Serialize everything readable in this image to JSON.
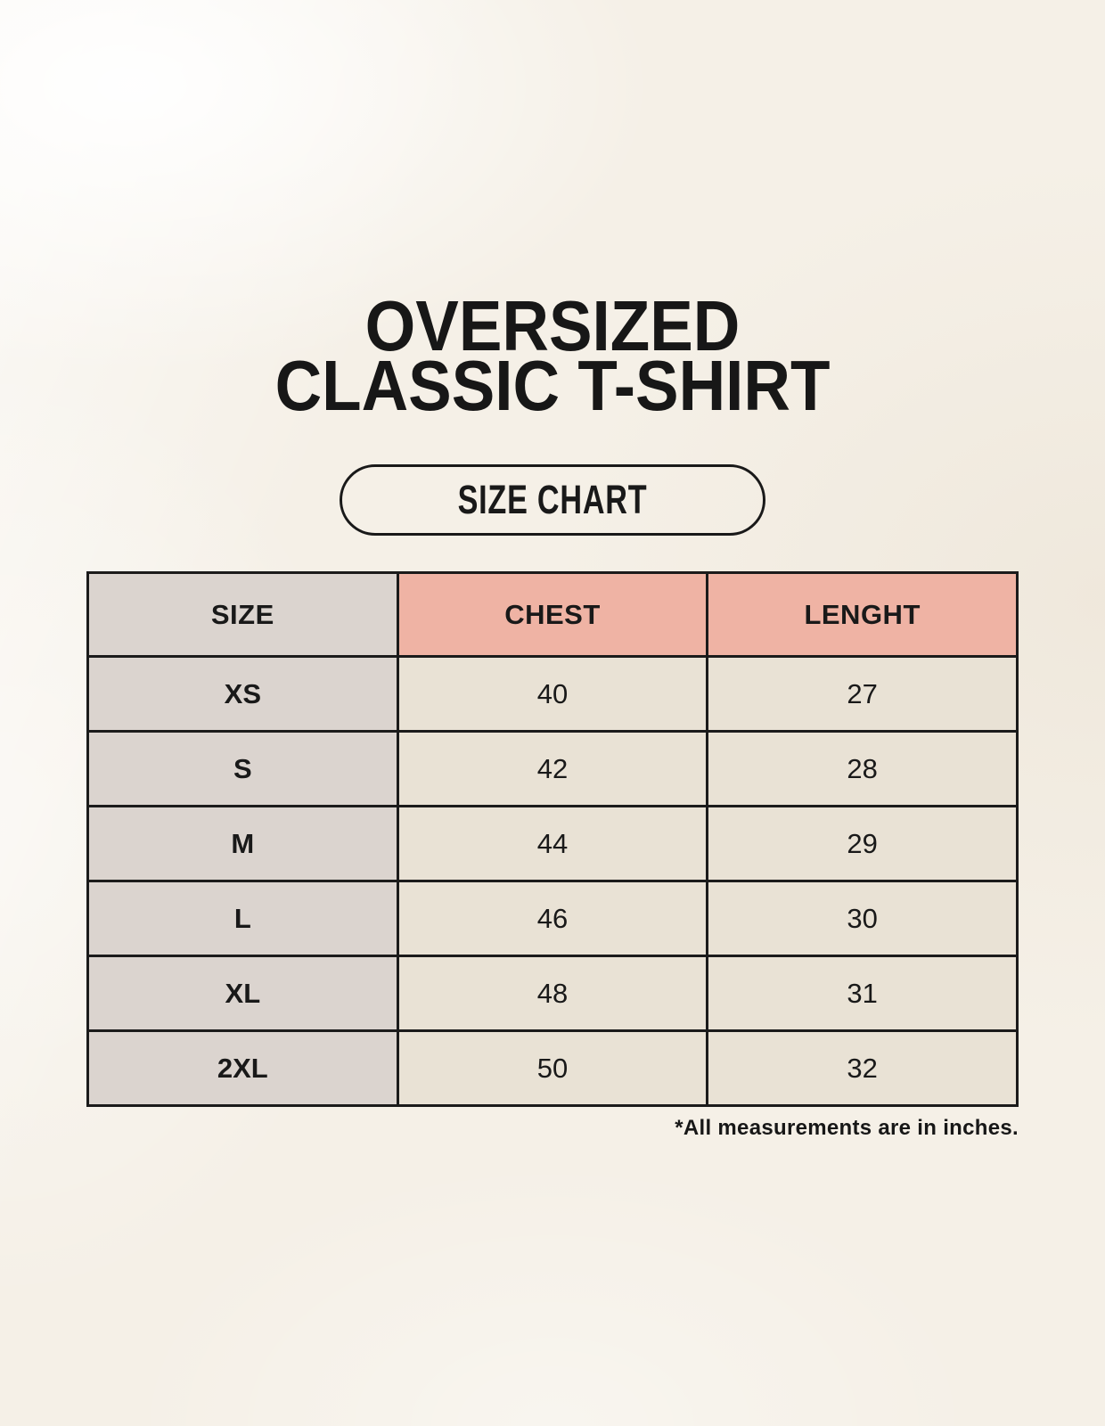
{
  "page": {
    "title_line1": "OVERSIZED",
    "title_line2": "CLASSIC T-SHIRT",
    "badge_label": "SIZE CHART"
  },
  "colors": {
    "background": "#f5f0e7",
    "size_column_bg": "#dbd4cf",
    "header_accent_bg": "#efb3a4",
    "cell_bg": "#e9e2d5",
    "border": "#1b1b1b",
    "text": "#191919"
  },
  "chart_data": {
    "type": "table",
    "title": "OVERSIZED CLASSIC T-SHIRT",
    "subtitle": "SIZE CHART",
    "columns": [
      "SIZE",
      "CHEST",
      "LENGHT"
    ],
    "rows": [
      {
        "size": "XS",
        "chest": 40,
        "lenght": 27
      },
      {
        "size": "S",
        "chest": 42,
        "lenght": 28
      },
      {
        "size": "M",
        "chest": 44,
        "lenght": 29
      },
      {
        "size": "L",
        "chest": 46,
        "lenght": 30
      },
      {
        "size": "XL",
        "chest": 48,
        "lenght": 31
      },
      {
        "size": "2XL",
        "chest": 50,
        "lenght": 32
      }
    ],
    "note": "*All measurements are in inches.",
    "units": "inches",
    "layout": {
      "columns_equal_width": true,
      "header_highlight": [
        "CHEST",
        "LENGHT"
      ],
      "note_position": "bottom-right"
    }
  }
}
